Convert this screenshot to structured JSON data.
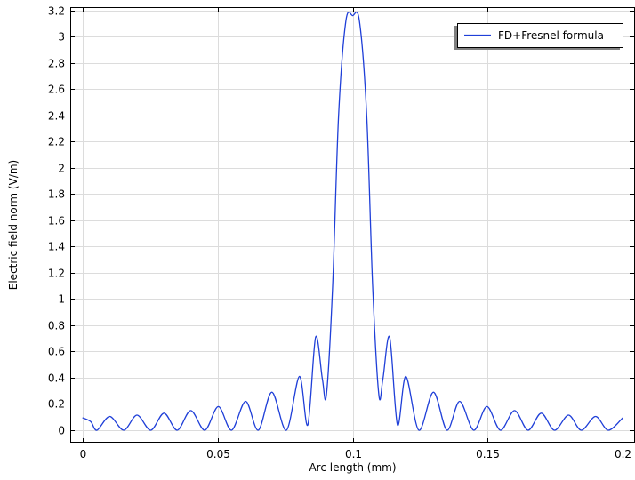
{
  "chart_data": {
    "type": "line",
    "xlabel": "Arc length (mm)",
    "ylabel": "Electric field norm (V/m)",
    "xlim": [
      -0.0045,
      0.2045
    ],
    "ylim": [
      -0.095,
      3.225
    ],
    "x_ticks": [
      0,
      0.05,
      0.1,
      0.15,
      0.2
    ],
    "x_tick_labels": [
      "0",
      "0.05",
      "0.1",
      "0.15",
      "0.2"
    ],
    "y_ticks": [
      0,
      0.2,
      0.4,
      0.6,
      0.8,
      1,
      1.2,
      1.4,
      1.6,
      1.8,
      2,
      2.2,
      2.4,
      2.6,
      2.8,
      3,
      3.2
    ],
    "y_tick_labels": [
      "0",
      "0.2",
      "0.4",
      "0.6",
      "0.8",
      "1",
      "1.2",
      "1.4",
      "1.6",
      "1.8",
      "2",
      "2.2",
      "2.4",
      "2.6",
      "2.8",
      "3",
      "3.2"
    ],
    "grid": true,
    "legend_position": "top-right",
    "series": [
      {
        "name": "FD+Fresnel formula",
        "color": "#1f3fd8",
        "x": [
          0,
          0.0031,
          0.0054,
          0.0101,
          0.0153,
          0.0202,
          0.0253,
          0.0302,
          0.0351,
          0.0401,
          0.0453,
          0.0503,
          0.0552,
          0.0604,
          0.0651,
          0.0701,
          0.0755,
          0.0803,
          0.0834,
          0.0863,
          0.0888,
          0.0903,
          0.0926,
          0.0948,
          0.0975,
          0.1,
          0.1025,
          0.1052,
          0.1074,
          0.1097,
          0.1112,
          0.1137,
          0.1166,
          0.1197,
          0.1245,
          0.1299,
          0.1349,
          0.1396,
          0.1448,
          0.1497,
          0.1547,
          0.1599,
          0.1649,
          0.1698,
          0.1747,
          0.1799,
          0.1846,
          0.1899,
          0.1946,
          0.2
        ],
        "y": [
          0.095,
          0.065,
          0.0,
          0.105,
          0.0,
          0.115,
          0.0,
          0.13,
          0.0,
          0.15,
          0.0,
          0.18,
          0.0,
          0.22,
          0.0,
          0.29,
          0.0,
          0.41,
          0.04,
          0.71,
          0.39,
          0.27,
          1.1,
          2.4,
          3.12,
          3.16,
          3.12,
          2.4,
          1.1,
          0.27,
          0.39,
          0.71,
          0.04,
          0.41,
          0.0,
          0.29,
          0.0,
          0.22,
          0.0,
          0.18,
          0.0,
          0.15,
          0.0,
          0.13,
          0.0,
          0.115,
          0.0,
          0.105,
          0.0,
          0.095
        ]
      }
    ]
  }
}
